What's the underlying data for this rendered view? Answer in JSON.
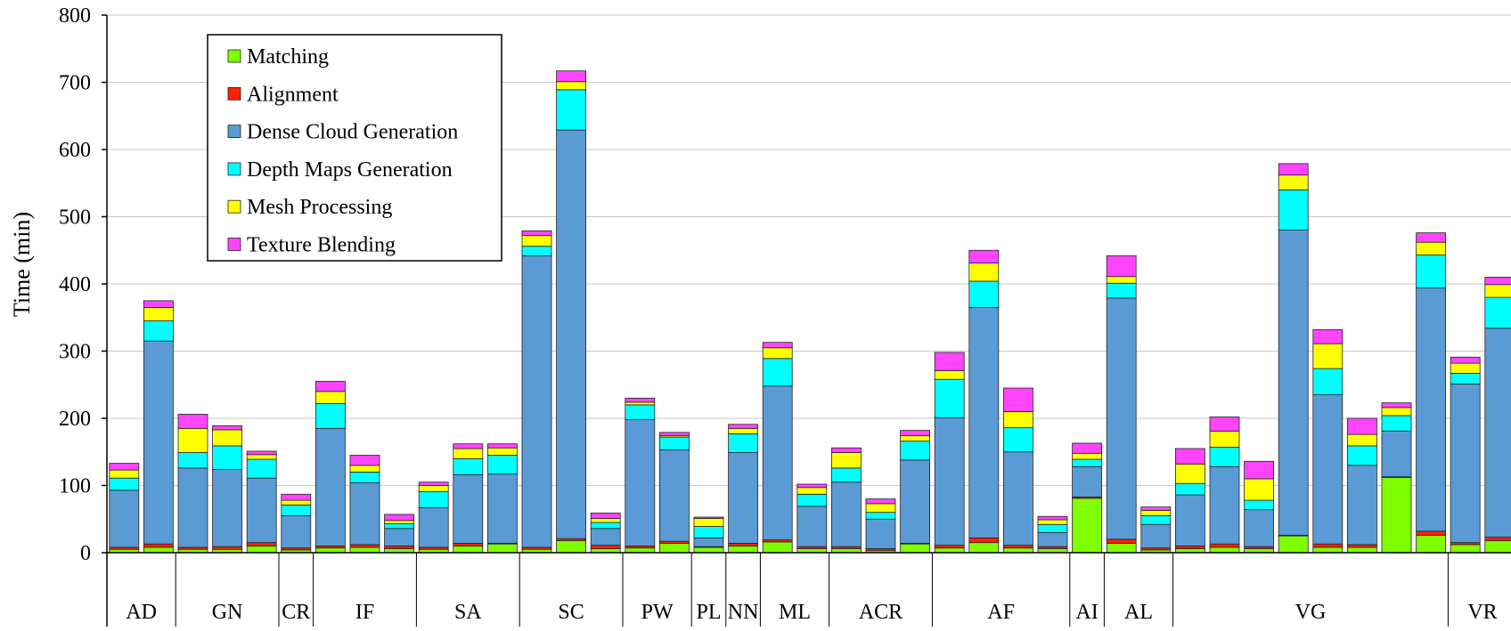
{
  "chart_data": {
    "type": "bar",
    "stacked": true,
    "title": "",
    "xlabel": "",
    "ylabel": "Time (min)",
    "ylim": [
      0,
      800
    ],
    "yticks": [
      0,
      100,
      200,
      300,
      400,
      500,
      600,
      700,
      800
    ],
    "grid": true,
    "legend_position": "top-left",
    "series": [
      {
        "name": "Matching",
        "color": "#7fff00"
      },
      {
        "name": "Alignment",
        "color": "#ff2200"
      },
      {
        "name": "Dense Cloud Generation",
        "color": "#5b9bd5"
      },
      {
        "name": "Depth Maps Generation",
        "color": "#00ffff"
      },
      {
        "name": "Mesh Processing",
        "color": "#ffff00"
      },
      {
        "name": "Texture Blending",
        "color": "#ff44ff"
      }
    ],
    "groups": [
      {
        "label": "AD",
        "bars": [
          [
            5,
            3,
            85,
            18,
            12,
            10
          ],
          [
            8,
            5,
            302,
            30,
            20,
            10
          ]
        ]
      },
      {
        "label": "GN",
        "bars": [
          [
            5,
            3,
            118,
            23,
            36,
            21
          ],
          [
            5,
            4,
            115,
            35,
            24,
            6
          ],
          [
            10,
            5,
            96,
            28,
            7,
            5
          ]
        ]
      },
      {
        "label": "CR",
        "bars": [
          [
            4,
            3,
            48,
            16,
            7,
            9
          ]
        ]
      },
      {
        "label": "IF",
        "bars": [
          [
            7,
            3,
            175,
            37,
            18,
            15
          ],
          [
            8,
            4,
            92,
            16,
            10,
            15
          ],
          [
            6,
            4,
            26,
            7,
            5,
            9
          ]
        ]
      },
      {
        "label": "SA",
        "bars": [
          [
            5,
            3,
            59,
            24,
            9,
            5
          ],
          [
            10,
            4,
            102,
            24,
            15,
            7
          ],
          [
            13,
            1,
            103,
            28,
            11,
            6
          ]
        ]
      },
      {
        "label": "SC",
        "bars": [
          [
            5,
            3,
            434,
            14,
            16,
            7
          ],
          [
            18,
            3,
            608,
            60,
            12,
            16
          ],
          [
            6,
            5,
            25,
            9,
            6,
            8
          ]
        ]
      },
      {
        "label": "PW",
        "bars": [
          [
            7,
            3,
            188,
            22,
            4,
            6
          ],
          [
            14,
            3,
            136,
            19,
            2,
            5
          ]
        ]
      },
      {
        "label": "PL",
        "bars": [
          [
            8,
            1,
            13,
            17,
            12,
            2
          ]
        ]
      },
      {
        "label": "NN",
        "bars": [
          [
            10,
            4,
            135,
            28,
            8,
            6
          ]
        ]
      },
      {
        "label": "ML",
        "bars": [
          [
            16,
            3,
            229,
            41,
            16,
            8
          ],
          [
            6,
            3,
            60,
            18,
            10,
            5
          ]
        ]
      },
      {
        "label": "ACR",
        "bars": [
          [
            6,
            3,
            96,
            21,
            23,
            7
          ],
          [
            3,
            3,
            44,
            10,
            13,
            7
          ],
          [
            13,
            1,
            124,
            28,
            8,
            8
          ]
        ]
      },
      {
        "label": "AF",
        "bars": [
          [
            7,
            4,
            190,
            57,
            13,
            27
          ],
          [
            15,
            7,
            343,
            39,
            27,
            19
          ],
          [
            7,
            4,
            139,
            36,
            24,
            35
          ],
          [
            6,
            3,
            21,
            12,
            7,
            5
          ]
        ]
      },
      {
        "label": "AI",
        "bars": [
          [
            81,
            2,
            45,
            11,
            9,
            15
          ]
        ]
      },
      {
        "label": "AL",
        "bars": [
          [
            14,
            6,
            359,
            22,
            10,
            31
          ],
          [
            4,
            3,
            35,
            13,
            8,
            5
          ]
        ]
      },
      {
        "label": "VG",
        "bars": [
          [
            6,
            4,
            76,
            17,
            29,
            23
          ],
          [
            8,
            5,
            115,
            29,
            24,
            21
          ],
          [
            6,
            3,
            55,
            14,
            32,
            26
          ],
          [
            25,
            1,
            454,
            60,
            22,
            17
          ],
          [
            8,
            5,
            222,
            39,
            37,
            21
          ],
          [
            8,
            4,
            118,
            29,
            17,
            24
          ],
          [
            112,
            1,
            68,
            23,
            12,
            7
          ],
          [
            26,
            6,
            362,
            49,
            19,
            14
          ]
        ]
      },
      {
        "label": "VR",
        "bars": [
          [
            12,
            3,
            236,
            16,
            15,
            9
          ],
          [
            18,
            5,
            311,
            46,
            19,
            11
          ]
        ]
      }
    ]
  }
}
